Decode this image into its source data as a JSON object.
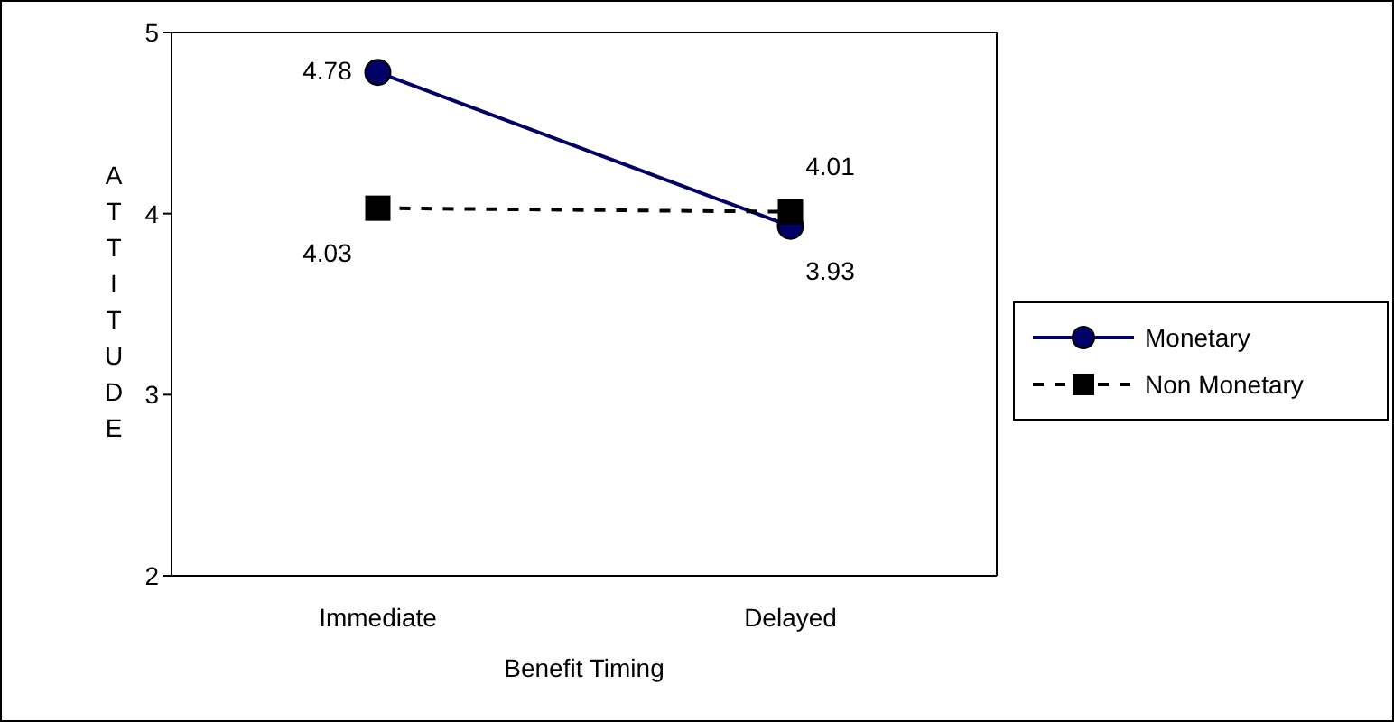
{
  "chart_data": {
    "type": "line",
    "xlabel": "Benefit Timing",
    "ylabel": "ATTITUDE",
    "categories": [
      "Immediate",
      "Delayed"
    ],
    "series": [
      {
        "name": "Monetary",
        "color": "#000066",
        "values": [
          4.78,
          3.93
        ],
        "marker": "circle",
        "line_style": "solid"
      },
      {
        "name": "Non Monetary",
        "color": "#000000",
        "values": [
          4.03,
          4.01
        ],
        "marker": "square",
        "line_style": "dashed"
      }
    ],
    "ylim": [
      2,
      5
    ],
    "yticks": [
      2,
      3,
      4,
      5
    ],
    "data_labels": true,
    "legend": "right",
    "grid": false
  }
}
